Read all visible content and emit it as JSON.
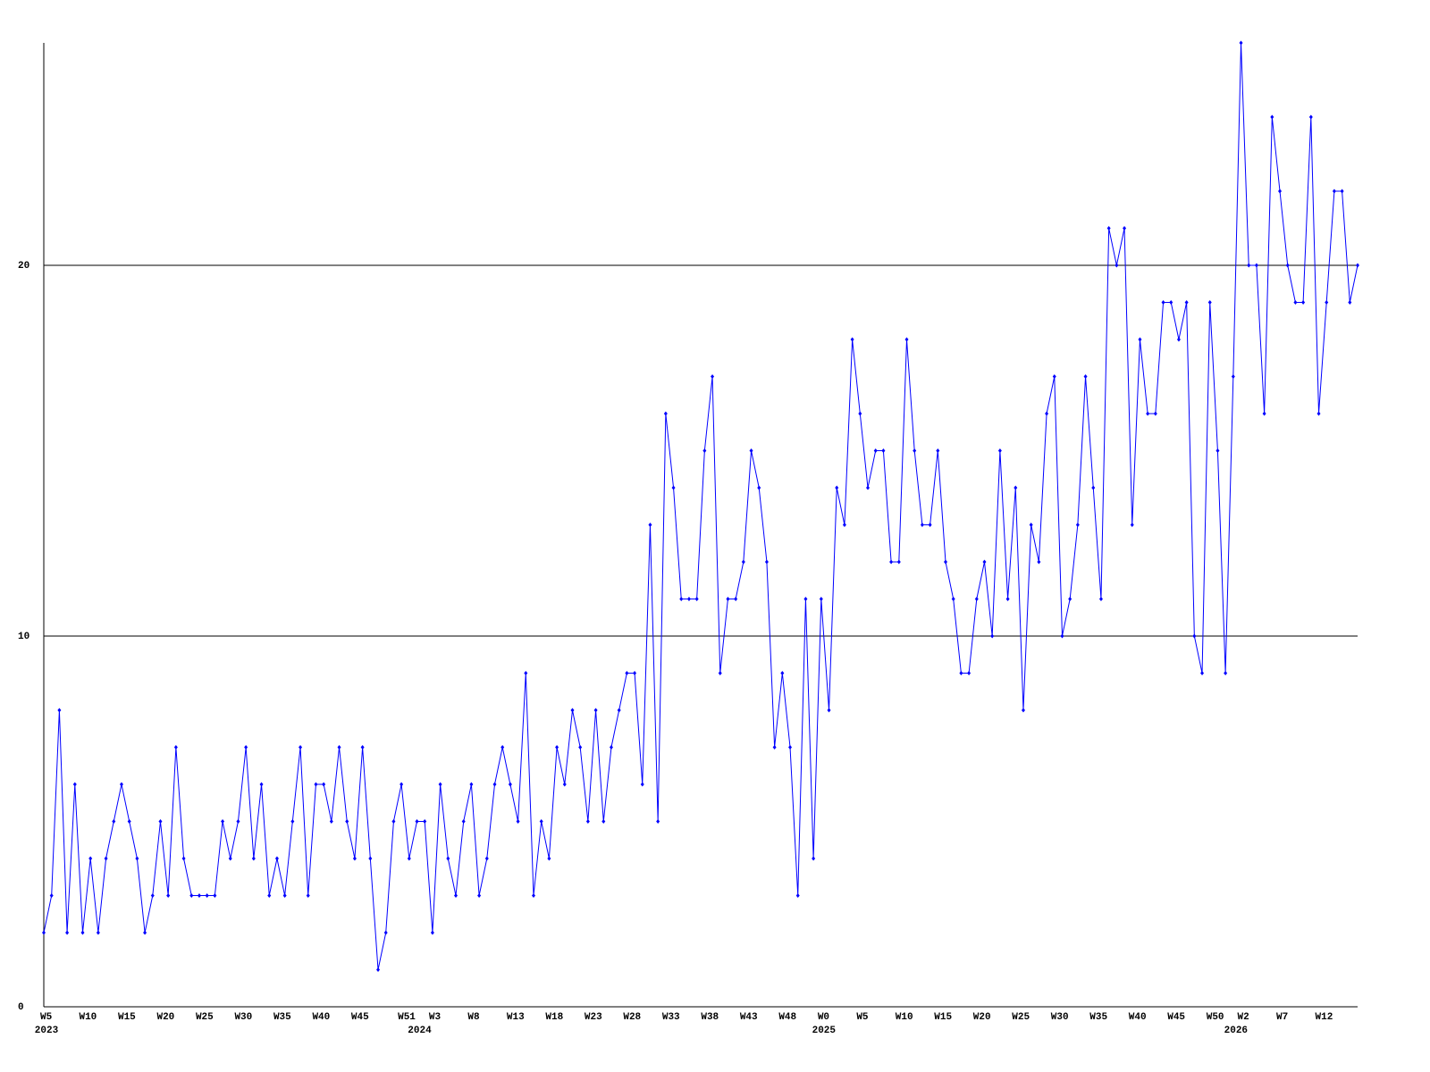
{
  "chart_data": {
    "type": "line",
    "categories": [
      "W5",
      null,
      null,
      null,
      null,
      "W10",
      null,
      null,
      null,
      null,
      "W15",
      null,
      null,
      null,
      null,
      "W20",
      null,
      null,
      null,
      null,
      "W25",
      null,
      null,
      null,
      null,
      "W30",
      null,
      null,
      null,
      null,
      "W35",
      null,
      null,
      null,
      null,
      "W40",
      null,
      null,
      null,
      null,
      "W45",
      null,
      null,
      null,
      null,
      null,
      "W51",
      null,
      null,
      null,
      "W3",
      null,
      null,
      null,
      null,
      "W8",
      null,
      null,
      null,
      null,
      "W13",
      null,
      null,
      null,
      null,
      "W18",
      null,
      null,
      null,
      null,
      "W23",
      null,
      null,
      null,
      null,
      "W28",
      null,
      null,
      null,
      null,
      "W33",
      null,
      null,
      null,
      null,
      "W38",
      null,
      null,
      null,
      null,
      "W43",
      null,
      null,
      null,
      null,
      "W48",
      null,
      null,
      null,
      null,
      "W0",
      null,
      null,
      null,
      null,
      "W5",
      null,
      null,
      null,
      null,
      "W10",
      null,
      null,
      null,
      null,
      "W15",
      null,
      null,
      null,
      null,
      "W20",
      null,
      null,
      null,
      null,
      "W25",
      null,
      null,
      null,
      null,
      "W30",
      null,
      null,
      null,
      null,
      "W35",
      null,
      null,
      null,
      null,
      "W40",
      null,
      null,
      null,
      null,
      "W45",
      null,
      null,
      null,
      null,
      "W50",
      null,
      null,
      null,
      "W2",
      null,
      null,
      null,
      null,
      "W7",
      null,
      null,
      null,
      null,
      "W12",
      null,
      null,
      null,
      null,
      null
    ],
    "years": [
      "2023",
      null,
      null,
      null,
      null,
      null,
      null,
      null,
      null,
      null,
      null,
      null,
      null,
      null,
      null,
      null,
      null,
      null,
      null,
      null,
      null,
      null,
      null,
      null,
      null,
      null,
      null,
      null,
      null,
      null,
      null,
      null,
      null,
      null,
      null,
      null,
      null,
      null,
      null,
      null,
      null,
      null,
      null,
      null,
      null,
      null,
      null,
      null,
      "2024",
      null,
      null,
      null,
      null,
      null,
      null,
      null,
      null,
      null,
      null,
      null,
      null,
      null,
      null,
      null,
      null,
      null,
      null,
      null,
      null,
      null,
      null,
      null,
      null,
      null,
      null,
      null,
      null,
      null,
      null,
      null,
      null,
      null,
      null,
      null,
      null,
      null,
      null,
      null,
      null,
      null,
      null,
      null,
      null,
      null,
      null,
      null,
      null,
      null,
      null,
      null,
      "2025",
      null,
      null,
      null,
      null,
      null,
      null,
      null,
      null,
      null,
      null,
      null,
      null,
      null,
      null,
      null,
      null,
      null,
      null,
      null,
      null,
      null,
      null,
      null,
      null,
      null,
      null,
      null,
      null,
      null,
      null,
      null,
      null,
      null,
      null,
      null,
      null,
      null,
      null,
      null,
      null,
      null,
      null,
      null,
      null,
      null,
      null,
      null,
      null,
      null,
      null,
      null,
      null,
      "2026",
      null,
      null,
      null,
      null,
      null,
      null,
      null,
      null,
      null,
      null,
      null,
      null,
      null,
      null,
      null,
      null
    ],
    "values": [
      2,
      3,
      8,
      2,
      6,
      2,
      4,
      2,
      4,
      5,
      6,
      5,
      4,
      2,
      3,
      5,
      3,
      7,
      4,
      3,
      3,
      3,
      3,
      5,
      4,
      5,
      7,
      4,
      6,
      3,
      4,
      3,
      5,
      7,
      3,
      6,
      6,
      5,
      7,
      5,
      4,
      7,
      4,
      1,
      2,
      5,
      6,
      4,
      5,
      5,
      2,
      6,
      4,
      3,
      5,
      6,
      3,
      4,
      6,
      7,
      6,
      5,
      9,
      3,
      5,
      4,
      7,
      6,
      8,
      7,
      5,
      8,
      5,
      7,
      8,
      9,
      9,
      6,
      13,
      5,
      16,
      14,
      11,
      11,
      11,
      15,
      17,
      9,
      11,
      11,
      12,
      15,
      14,
      12,
      7,
      9,
      7,
      3,
      11,
      4,
      11,
      8,
      14,
      13,
      18,
      16,
      14,
      15,
      15,
      12,
      12,
      18,
      15,
      13,
      13,
      15,
      12,
      11,
      9,
      9,
      11,
      12,
      10,
      15,
      11,
      14,
      8,
      13,
      12,
      16,
      17,
      10,
      11,
      13,
      17,
      14,
      11,
      21,
      20,
      21,
      13,
      18,
      16,
      16,
      19,
      19,
      18,
      19,
      10,
      9,
      19,
      15,
      9,
      17,
      26,
      20,
      20,
      16,
      24,
      22,
      20,
      19,
      19,
      24,
      16,
      19,
      22,
      22,
      19,
      20
    ],
    "color": "#0000ff",
    "ylim": [
      0,
      26
    ],
    "yticks": [
      0,
      10,
      20
    ],
    "grid": true
  }
}
